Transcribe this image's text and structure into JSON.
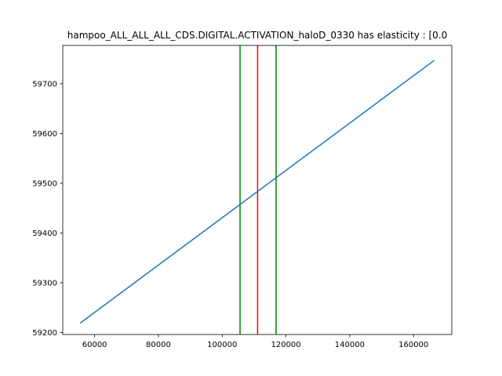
{
  "chart_data": {
    "type": "line",
    "title": "hampoo_ALL_ALL_ALL_CDS.DIGITAL.ACTIVATION_haloD_0330 has elasticity : [0.0",
    "xlabel": "",
    "ylabel": "",
    "xlim": [
      50000,
      172000
    ],
    "ylim": [
      59196,
      59777
    ],
    "x_ticks": [
      60000,
      80000,
      100000,
      120000,
      140000,
      160000
    ],
    "x_tick_labels": [
      "60000",
      "80000",
      "100000",
      "120000",
      "140000",
      "160000"
    ],
    "y_ticks": [
      59200,
      59300,
      59400,
      59500,
      59600,
      59700
    ],
    "y_tick_labels": [
      "59200",
      "59300",
      "59400",
      "59500",
      "59600",
      "59700"
    ],
    "grid": false,
    "series": [
      {
        "x": [
          55500,
          166500
        ],
        "y": [
          59219,
          59747
        ],
        "color": "#1f77b4"
      }
    ],
    "vertical_lines": [
      {
        "x": 105600,
        "color": "#008000"
      },
      {
        "x": 111100,
        "color": "#ff0000"
      },
      {
        "x": 116900,
        "color": "#008000"
      }
    ]
  }
}
